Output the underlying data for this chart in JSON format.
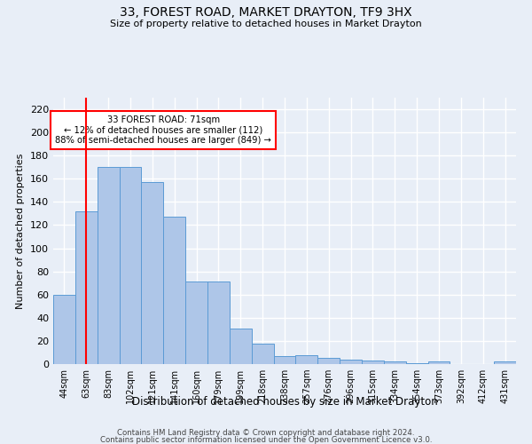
{
  "title": "33, FOREST ROAD, MARKET DRAYTON, TF9 3HX",
  "subtitle": "Size of property relative to detached houses in Market Drayton",
  "xlabel": "Distribution of detached houses by size in Market Drayton",
  "ylabel": "Number of detached properties",
  "categories": [
    "44sqm",
    "63sqm",
    "83sqm",
    "102sqm",
    "121sqm",
    "141sqm",
    "160sqm",
    "179sqm",
    "199sqm",
    "218sqm",
    "238sqm",
    "257sqm",
    "276sqm",
    "296sqm",
    "315sqm",
    "334sqm",
    "354sqm",
    "373sqm",
    "392sqm",
    "412sqm",
    "431sqm"
  ],
  "values": [
    60,
    132,
    170,
    170,
    157,
    127,
    71,
    71,
    31,
    18,
    7,
    8,
    5,
    4,
    3,
    2,
    1,
    2,
    0,
    0,
    2
  ],
  "bar_color": "#aec6e8",
  "bar_edge_color": "#5b9bd5",
  "vline_x_index": 1,
  "annotation_text": "33 FOREST ROAD: 71sqm\n← 12% of detached houses are smaller (112)\n88% of semi-detached houses are larger (849) →",
  "annotation_box_color": "white",
  "annotation_box_edge_color": "red",
  "vline_color": "red",
  "ylim": [
    0,
    230
  ],
  "yticks": [
    0,
    20,
    40,
    60,
    80,
    100,
    120,
    140,
    160,
    180,
    200,
    220
  ],
  "background_color": "#e8eef7",
  "plot_bg_color": "#e8eef7",
  "grid_color": "white",
  "footer1": "Contains HM Land Registry data © Crown copyright and database right 2024.",
  "footer2": "Contains public sector information licensed under the Open Government Licence v3.0."
}
